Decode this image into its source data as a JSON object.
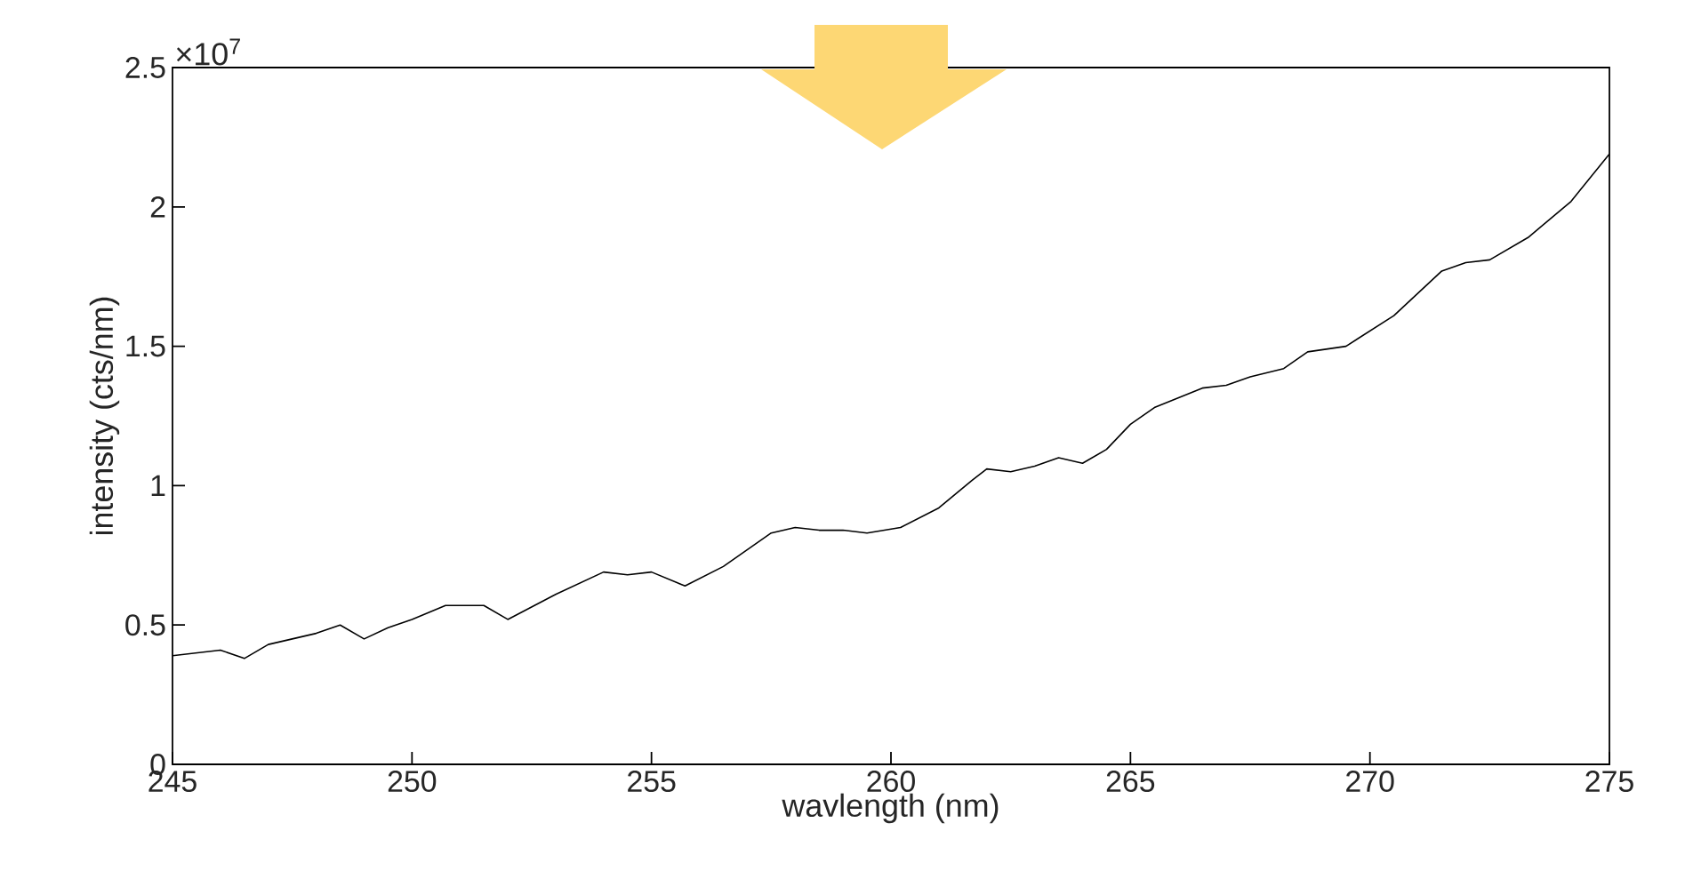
{
  "chart_data": {
    "type": "line",
    "xlabel": "wavlength (nm)",
    "ylabel": "intensity (cts/nm)",
    "annotations": [
      "×10$^{7}$"
    ],
    "xlim": [
      245,
      275
    ],
    "xticks": [
      245,
      250,
      255,
      260,
      265,
      270,
      275
    ],
    "ylim": [
      0,
      2.5
    ],
    "yticks": [
      0,
      0.5,
      1,
      1.5,
      2,
      2.5
    ],
    "grid": false,
    "marker": "none",
    "line_style": "solid",
    "series": [
      {
        "color": "#000000",
        "x": [
          245,
          246,
          246.5,
          247,
          248,
          248.5,
          249,
          249.5,
          250,
          250.7,
          251.5,
          252,
          253,
          254,
          254.5,
          255,
          255.7,
          256.5,
          257.5,
          258,
          258.5,
          259,
          259.5,
          260.2,
          261,
          261.7,
          262,
          262.5,
          263,
          263.5,
          264,
          264.5,
          265,
          265.5,
          266.5,
          267,
          267.5,
          268.2,
          268.7,
          269.5,
          270.5,
          271.5,
          272,
          272.5,
          273.3,
          274.2,
          275
        ],
        "values": [
          0.39,
          0.41,
          0.38,
          0.43,
          0.47,
          0.5,
          0.45,
          0.49,
          0.52,
          0.57,
          0.57,
          0.52,
          0.61,
          0.69,
          0.68,
          0.69,
          0.64,
          0.71,
          0.83,
          0.85,
          0.84,
          0.84,
          0.83,
          0.85,
          0.92,
          1.02,
          1.06,
          1.05,
          1.07,
          1.1,
          1.08,
          1.13,
          1.22,
          1.28,
          1.35,
          1.36,
          1.39,
          1.42,
          1.48,
          1.5,
          1.61,
          1.77,
          1.8,
          1.81,
          1.89,
          2.02,
          2.19
        ]
      }
    ]
  }
}
